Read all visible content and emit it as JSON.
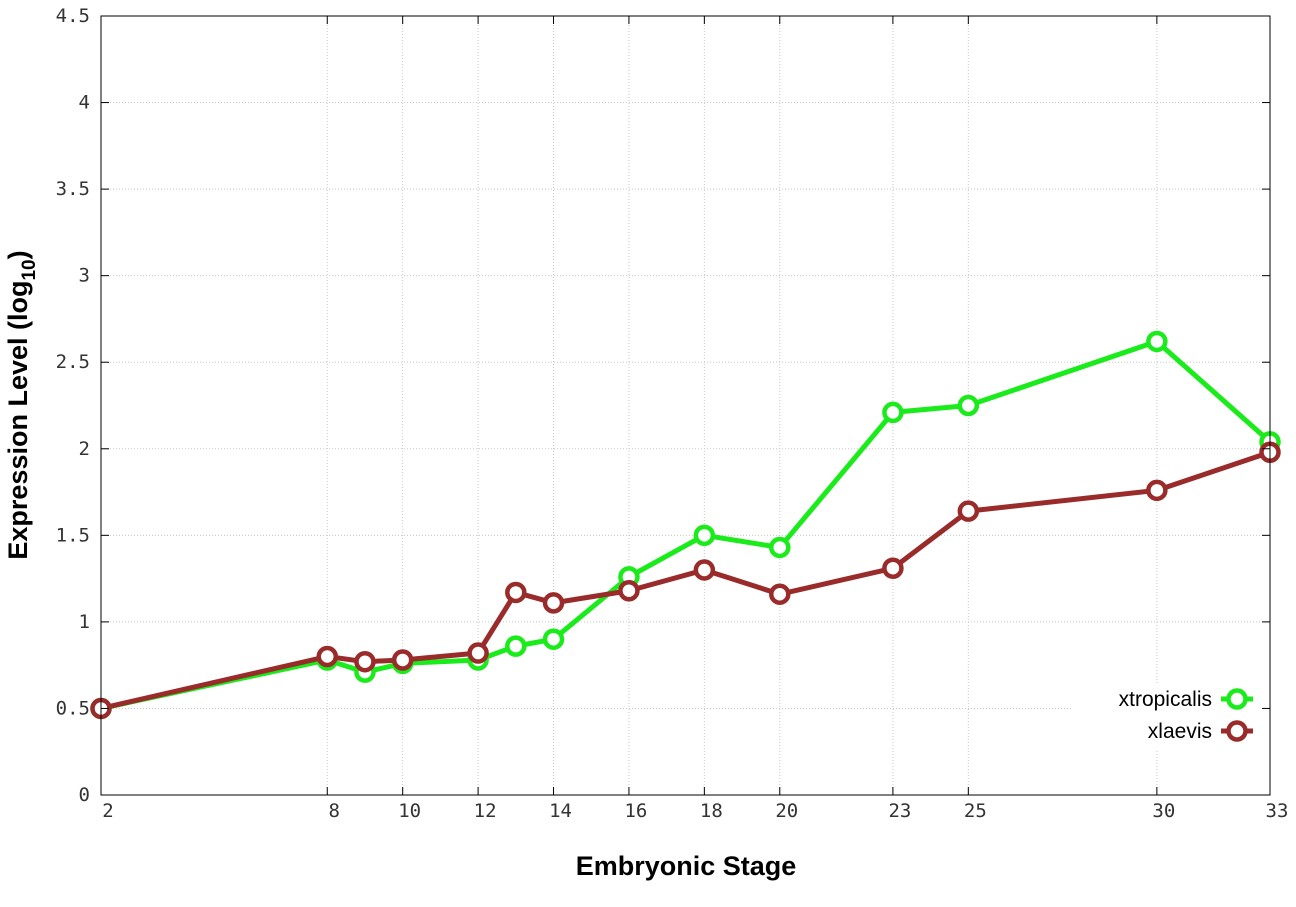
{
  "chart_data": {
    "type": "line",
    "title": "",
    "xlabel": "Embryonic Stage",
    "ylabel_main": "Expression Level (log",
    "ylabel_sub": "10",
    "ylabel_close": ")",
    "x_ticks": [
      "2",
      "8",
      "10",
      "12",
      "14",
      "16",
      "18",
      "20",
      "23",
      "25",
      "30",
      "33"
    ],
    "x": [
      "2",
      "8",
      "9",
      "10",
      "12",
      "13",
      "14",
      "16",
      "18",
      "20",
      "23",
      "25",
      "30",
      "33"
    ],
    "y_ticks": [
      "0",
      "0.5",
      "1",
      "1.5",
      "2",
      "2.5",
      "3",
      "3.5",
      "4",
      "4.5"
    ],
    "ylim": [
      0,
      4.5
    ],
    "grid": true,
    "legend_position": "bottom-right",
    "series": [
      {
        "name": "xtropicalis",
        "color": "#1aeb1a",
        "values": [
          0.5,
          0.78,
          0.71,
          0.76,
          0.78,
          0.86,
          0.9,
          1.26,
          1.5,
          1.43,
          2.21,
          2.25,
          2.62,
          2.04
        ]
      },
      {
        "name": "xlaevis",
        "color": "#9a2b2b",
        "values": [
          0.5,
          0.8,
          0.77,
          0.78,
          0.82,
          1.17,
          1.11,
          1.18,
          1.3,
          1.16,
          1.31,
          1.64,
          1.76,
          1.98
        ]
      }
    ]
  }
}
